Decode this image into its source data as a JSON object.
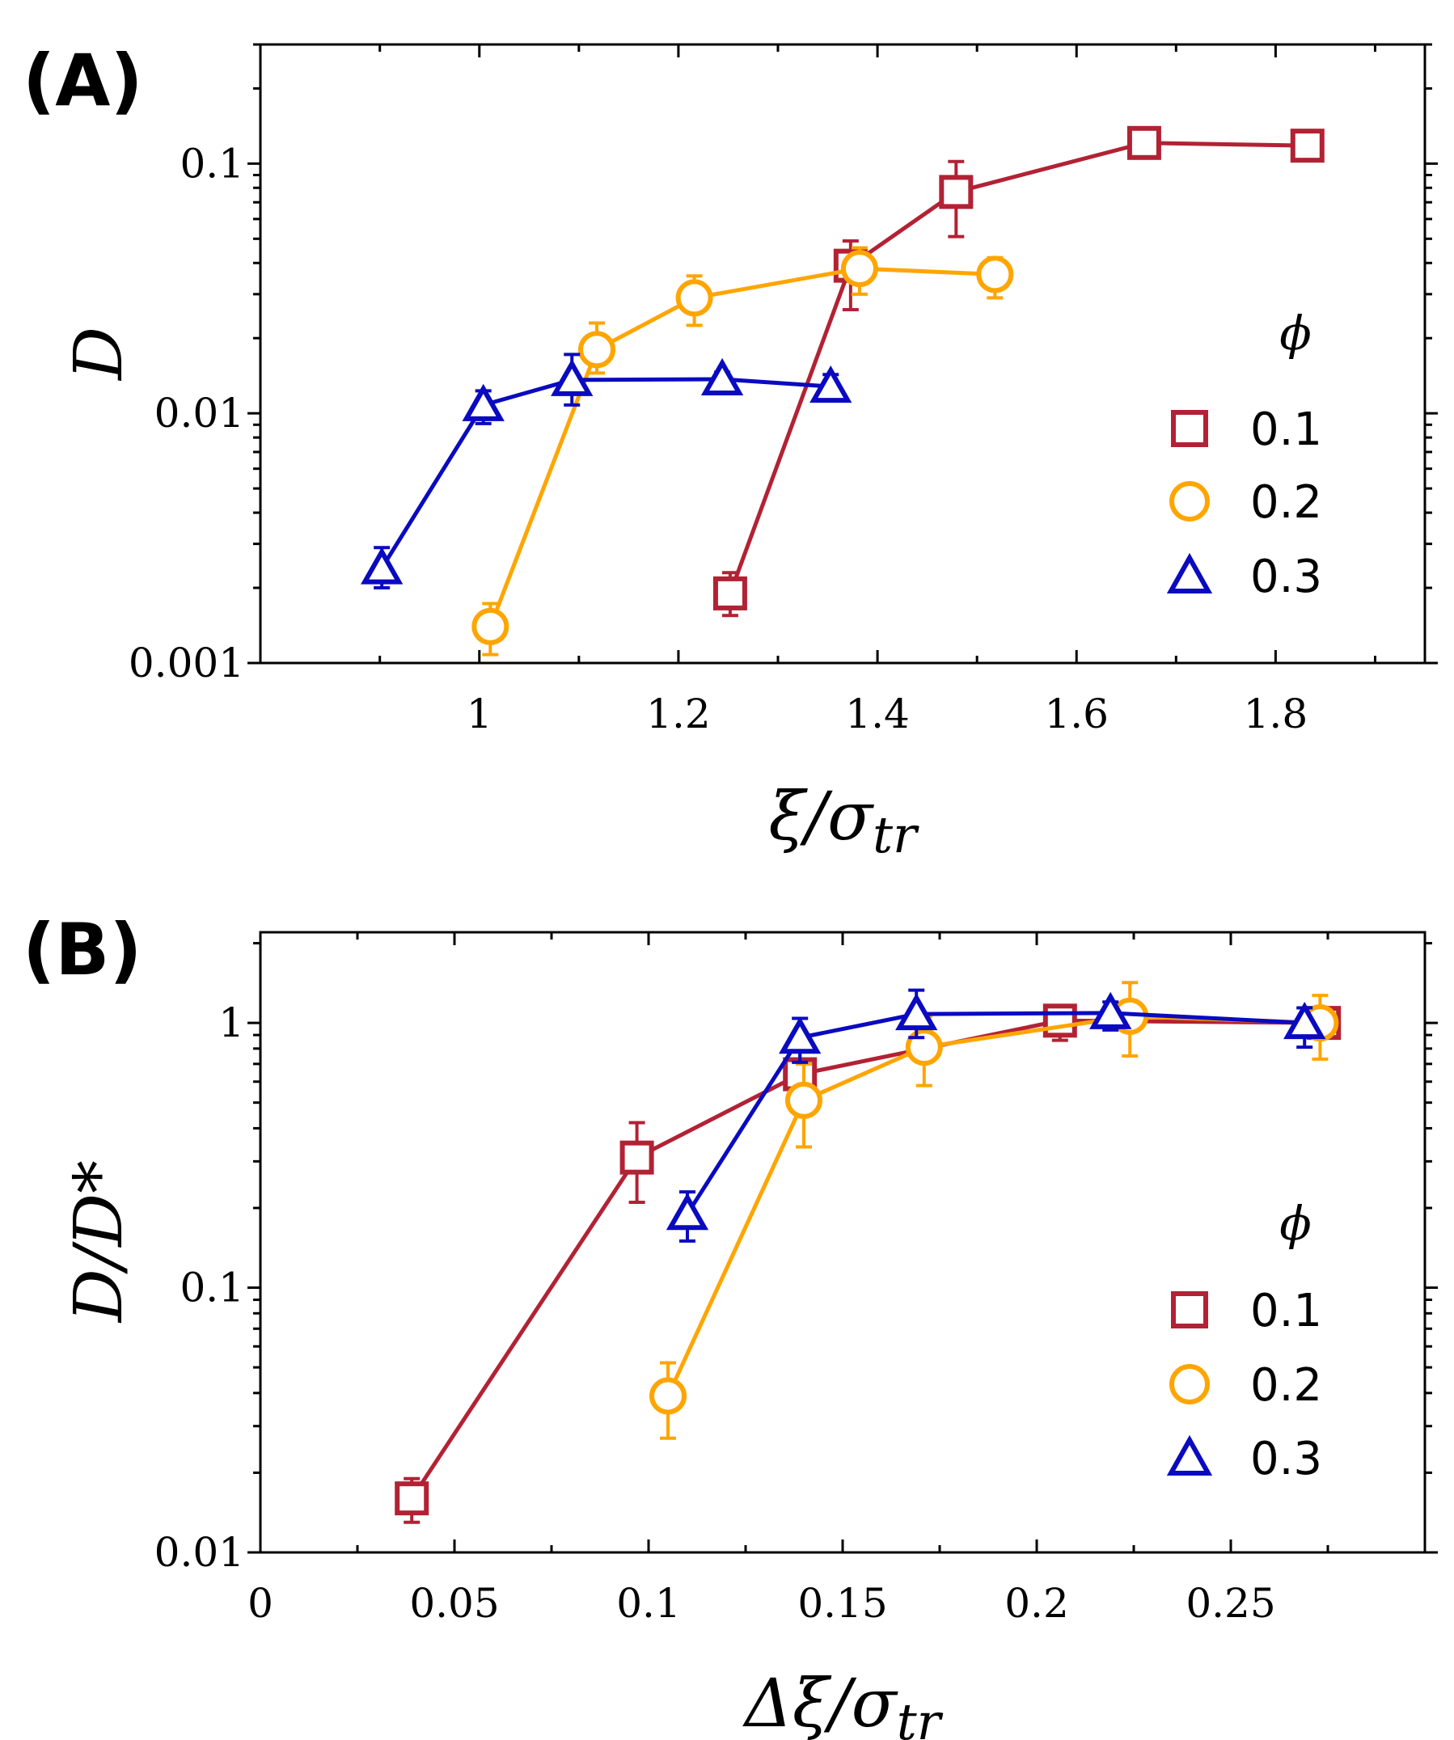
{
  "colors": {
    "phi_0_1": "#b22234",
    "phi_0_2": "#ffa500",
    "phi_0_3": "#0a0ac0",
    "axis": "#000000"
  },
  "chart_data": [
    {
      "panel_label": "(A)",
      "type": "line",
      "yscale": "log",
      "xlabel": "ξ/σ_tr",
      "xlabel_parts": {
        "main": "ξ/σ",
        "sub": "tr"
      },
      "ylabel": "D",
      "xlim": [
        0.78,
        1.95
      ],
      "ylim": [
        0.001,
        0.3
      ],
      "xticks": [
        1,
        1.2,
        1.4,
        1.6,
        1.8
      ],
      "xtick_labels": [
        "1",
        "1.2",
        "1.4",
        "1.6",
        "1.8"
      ],
      "yticks": [
        0.001,
        0.01,
        0.1
      ],
      "ytick_labels": [
        "0.001",
        "0.01",
        "0.1"
      ],
      "legend_title": "ϕ",
      "legend_position": "right",
      "series": [
        {
          "name": "0.1",
          "marker": "square",
          "color": "#b22234",
          "x": [
            1.252,
            1.373,
            1.479,
            1.668,
            1.832
          ],
          "y": [
            0.0019,
            0.039,
            0.077,
            0.121,
            0.118
          ],
          "err_low": [
            0.00155,
            0.026,
            0.051,
            0.111,
            0.114
          ],
          "err_high": [
            0.0023,
            0.049,
            0.102,
            0.124,
            0.121
          ]
        },
        {
          "name": "0.2",
          "marker": "circle",
          "color": "#ffa500",
          "x": [
            1.011,
            1.118,
            1.216,
            1.382,
            1.518
          ],
          "y": [
            0.0014,
            0.018,
            0.029,
            0.038,
            0.036
          ],
          "err_low": [
            0.00108,
            0.0145,
            0.0225,
            0.03,
            0.029
          ],
          "err_high": [
            0.00173,
            0.023,
            0.0355,
            0.046,
            0.042
          ]
        },
        {
          "name": "0.3",
          "marker": "triangle",
          "color": "#0a0ac0",
          "x": [
            0.902,
            1.004,
            1.093,
            1.244,
            1.353
          ],
          "y": [
            0.0024,
            0.0108,
            0.0136,
            0.0137,
            0.0128
          ],
          "err_low": [
            0.002,
            0.0091,
            0.0108,
            0.0128,
            0.0112
          ],
          "err_high": [
            0.0029,
            0.0123,
            0.0172,
            0.0146,
            0.0143
          ]
        }
      ]
    },
    {
      "panel_label": "(B)",
      "type": "line",
      "yscale": "log",
      "xlabel": "Δξ/σ_tr",
      "xlabel_parts": {
        "main": "Δξ/σ",
        "sub": "tr"
      },
      "ylabel": "D/D*",
      "xlim": [
        0,
        0.3
      ],
      "ylim": [
        0.01,
        2.2
      ],
      "xticks": [
        0,
        0.05,
        0.1,
        0.15,
        0.2,
        0.25
      ],
      "xtick_labels": [
        "0",
        "0.05",
        "0.1",
        "0.15",
        "0.2",
        "0.25"
      ],
      "yticks": [
        0.01,
        0.1,
        1
      ],
      "ytick_labels": [
        "0.01",
        "0.1",
        "1"
      ],
      "legend_title": "ϕ",
      "legend_position": "right",
      "series": [
        {
          "name": "0.1",
          "marker": "square",
          "color": "#b22234",
          "x": [
            0.039,
            0.097,
            0.139,
            0.206,
            0.274
          ],
          "y": [
            0.016,
            0.31,
            0.64,
            1.02,
            1.0
          ],
          "err_low": [
            0.013,
            0.21,
            0.5,
            0.86,
            0.88
          ],
          "err_high": [
            0.019,
            0.42,
            0.78,
            1.12,
            1.1
          ]
        },
        {
          "name": "0.2",
          "marker": "circle",
          "color": "#ffa500",
          "x": [
            0.105,
            0.14,
            0.171,
            0.224,
            0.273
          ],
          "y": [
            0.039,
            0.51,
            0.81,
            1.06,
            1.0
          ],
          "err_low": [
            0.027,
            0.34,
            0.58,
            0.75,
            0.73
          ],
          "err_high": [
            0.052,
            0.7,
            1.06,
            1.42,
            1.27
          ]
        },
        {
          "name": "0.3",
          "marker": "triangle",
          "color": "#0a0ac0",
          "x": [
            0.11,
            0.139,
            0.169,
            0.219,
            0.269
          ],
          "y": [
            0.19,
            0.88,
            1.08,
            1.09,
            1.0
          ],
          "err_low": [
            0.15,
            0.71,
            0.88,
            0.94,
            0.81
          ],
          "err_high": [
            0.23,
            1.04,
            1.33,
            1.2,
            1.14
          ]
        }
      ]
    }
  ]
}
